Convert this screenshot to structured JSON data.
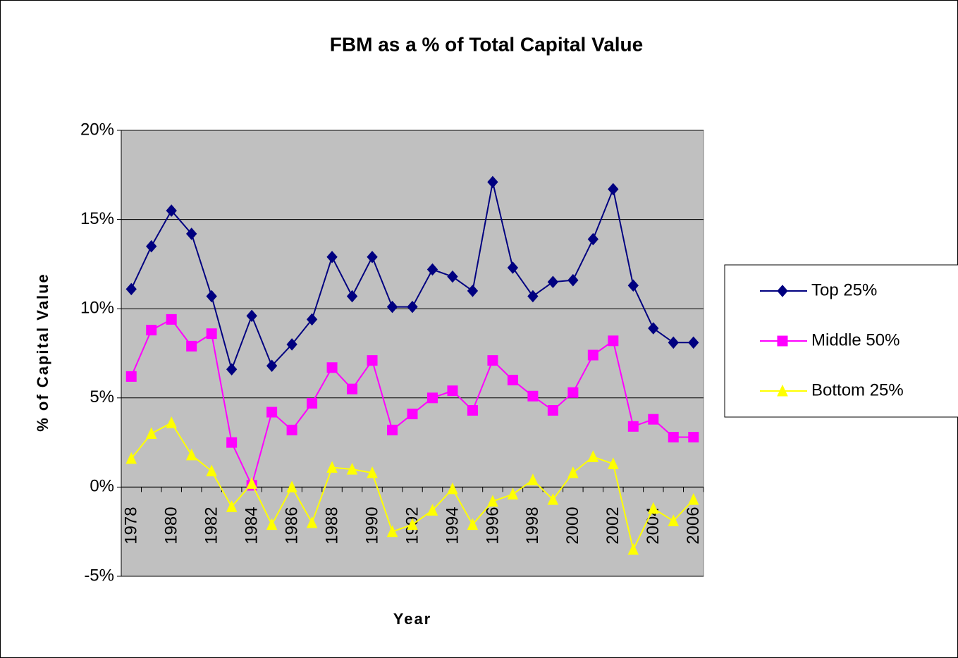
{
  "chart_data": {
    "type": "line",
    "title": "FBM as a % of Total Capital Value",
    "x_label": "Year",
    "y_label": "% of Capital Value",
    "categories": [
      "1978",
      null,
      "1980",
      null,
      "1982",
      null,
      "1984",
      null,
      "1986",
      null,
      "1988",
      null,
      "1990",
      null,
      "1992",
      null,
      "1994",
      null,
      "1996",
      null,
      "1998",
      null,
      "2000",
      null,
      "2002",
      null,
      "2004",
      null,
      "2006"
    ],
    "series": [
      {
        "name": "Top 25%",
        "color": "#000080",
        "marker": "diamond",
        "values": [
          11.1,
          13.5,
          15.5,
          14.2,
          10.7,
          6.6,
          9.6,
          6.8,
          8.0,
          9.4,
          12.9,
          10.7,
          12.9,
          10.1,
          10.1,
          12.2,
          11.8,
          11.0,
          17.1,
          12.3,
          10.7,
          11.5,
          11.6,
          13.9,
          16.7,
          11.3,
          8.9,
          8.1,
          8.1
        ]
      },
      {
        "name": "Middle 50%",
        "color": "#ff00ff",
        "marker": "square",
        "values": [
          6.2,
          8.8,
          9.4,
          7.9,
          8.6,
          2.5,
          0.1,
          4.2,
          3.2,
          4.7,
          6.7,
          5.5,
          7.1,
          3.2,
          4.1,
          5.0,
          5.4,
          4.3,
          7.1,
          6.0,
          5.1,
          4.3,
          5.3,
          7.4,
          8.2,
          3.4,
          3.8,
          2.8,
          2.8
        ]
      },
      {
        "name": "Bottom 25%",
        "color": "#ffff00",
        "marker": "triangle",
        "values": [
          1.6,
          3.0,
          3.6,
          1.8,
          0.9,
          -1.1,
          0.2,
          -2.1,
          0.0,
          -2.0,
          1.1,
          1.0,
          0.8,
          -2.5,
          -2.1,
          -1.3,
          -0.1,
          -2.1,
          -0.8,
          -0.4,
          0.4,
          -0.7,
          0.8,
          1.7,
          1.3,
          -3.5,
          -1.2,
          -1.9,
          -0.7
        ]
      }
    ],
    "ylim": [
      -5,
      20
    ],
    "yticks": [
      {
        "value": -5,
        "label": "-5%"
      },
      {
        "value": 0,
        "label": "0%"
      },
      {
        "value": 5,
        "label": "5%"
      },
      {
        "value": 10,
        "label": "10%"
      },
      {
        "value": 15,
        "label": "15%"
      },
      {
        "value": 20,
        "label": "20%"
      }
    ],
    "grid": true,
    "legend": "right",
    "plot_background": "#c0c0c0"
  }
}
